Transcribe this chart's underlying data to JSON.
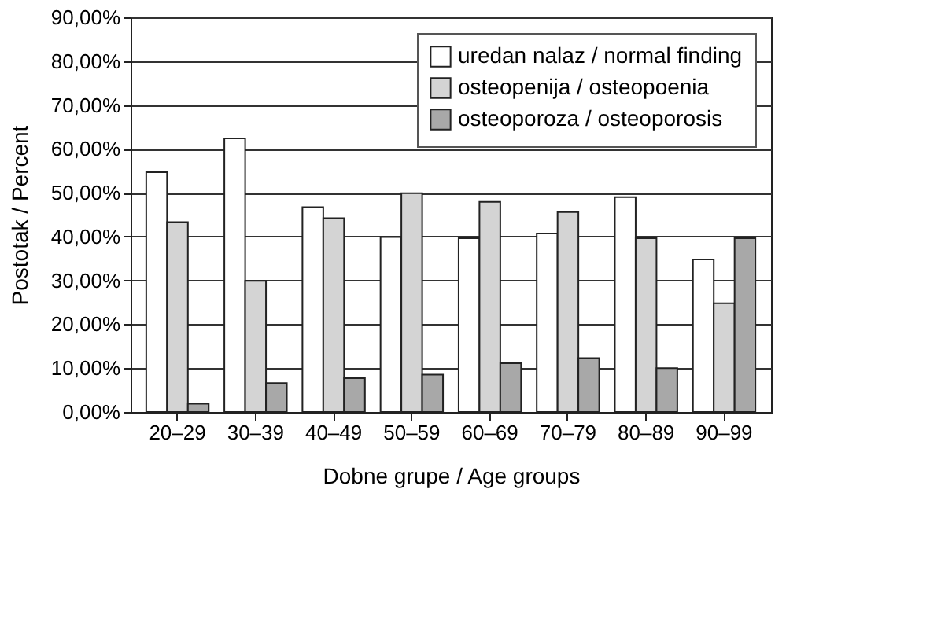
{
  "chart_data": {
    "type": "bar",
    "xlabel": "Dobne grupe / Age groups",
    "ylabel": "Postotak / Percent",
    "categories": [
      "20–29",
      "30–39",
      "40–49",
      "50–59",
      "60–69",
      "70–79",
      "80–89",
      "90–99"
    ],
    "series": [
      {
        "name": "uredan nalaz / normal finding",
        "color": "#ffffff",
        "values": [
          54.7,
          62.4,
          46.7,
          39.9,
          39.6,
          40.7,
          49.0,
          34.8
        ]
      },
      {
        "name": "osteopenija / osteopoenia",
        "color": "#d4d4d4",
        "values": [
          43.3,
          29.9,
          44.2,
          49.9,
          47.9,
          45.6,
          39.6,
          24.8
        ]
      },
      {
        "name": "osteoporoza / osteoporosis",
        "color": "#a8a8a8",
        "values": [
          1.9,
          6.6,
          7.7,
          8.5,
          11.1,
          12.3,
          10.0,
          39.6
        ]
      }
    ],
    "ylim": [
      0,
      90
    ],
    "yticks": [
      {
        "value": 0,
        "label": "0,00%"
      },
      {
        "value": 10,
        "label": "10,00%"
      },
      {
        "value": 20,
        "label": "20,00%"
      },
      {
        "value": 30,
        "label": "30,00%"
      },
      {
        "value": 40,
        "label": "40,00%"
      },
      {
        "value": 50,
        "label": "50,00%"
      },
      {
        "value": 60,
        "label": "60,00%"
      },
      {
        "value": 70,
        "label": "70,00%"
      },
      {
        "value": 80,
        "label": "80,00%"
      },
      {
        "value": 90,
        "label": "90,00%"
      }
    ],
    "grid": "y",
    "legend": "top right"
  }
}
